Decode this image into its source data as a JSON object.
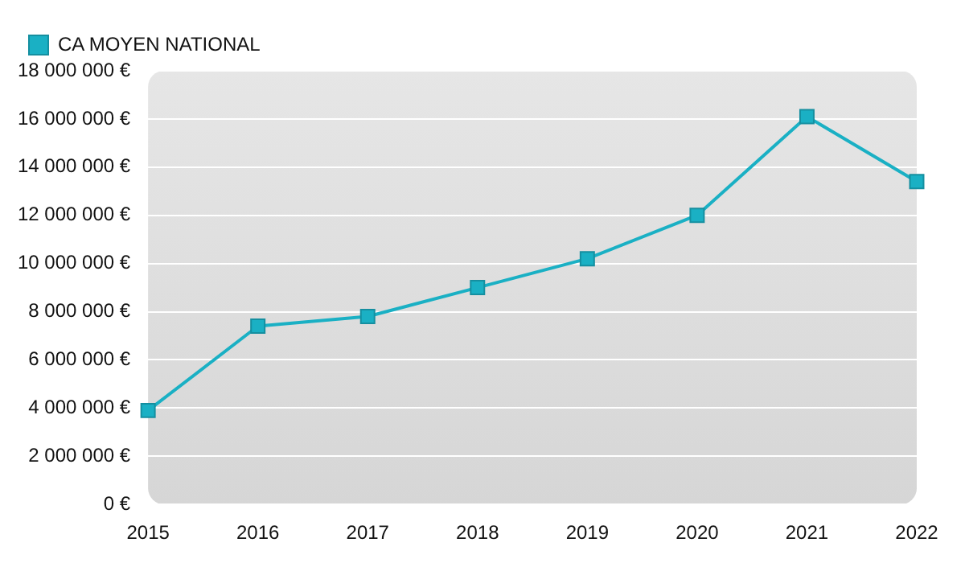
{
  "chart_data": {
    "type": "line",
    "categories": [
      "2015",
      "2016",
      "2017",
      "2018",
      "2019",
      "2020",
      "2021",
      "2022"
    ],
    "series": [
      {
        "name": "CA MOYEN NATIONAL",
        "color": "#1ab0c4",
        "values": [
          3900000,
          7400000,
          7800000,
          9000000,
          10200000,
          12000000,
          16100000,
          13400000
        ]
      }
    ],
    "ylim": [
      0,
      18000000
    ],
    "yticks": [
      {
        "value": 0,
        "label": "0 €"
      },
      {
        "value": 2000000,
        "label": "2 000 000 €"
      },
      {
        "value": 4000000,
        "label": "4 000 000 €"
      },
      {
        "value": 6000000,
        "label": "6 000 000 €"
      },
      {
        "value": 8000000,
        "label": "8 000 000 €"
      },
      {
        "value": 10000000,
        "label": "10 000 000 €"
      },
      {
        "value": 12000000,
        "label": "12 000 000 €"
      },
      {
        "value": 14000000,
        "label": "14 000 000 €"
      },
      {
        "value": 16000000,
        "label": "16 000 000 €"
      },
      {
        "value": 18000000,
        "label": "18 000 000 €"
      }
    ],
    "grid": "y",
    "legend": "top left",
    "marker": "square",
    "line_style": "solid"
  }
}
